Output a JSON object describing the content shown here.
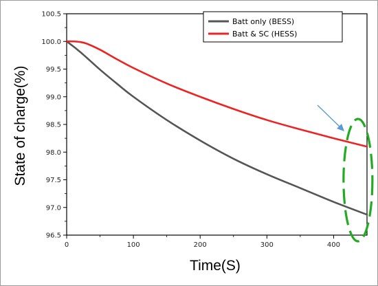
{
  "chart_data": {
    "type": "line",
    "xlabel": "Time(S)",
    "ylabel": "State of charge(%)",
    "xlim": [
      0,
      450
    ],
    "ylim": [
      96.5,
      100.5
    ],
    "x_ticks": [
      "0",
      "100",
      "200",
      "300",
      "400"
    ],
    "y_ticks": [
      "96.5",
      "97.0",
      "97.5",
      "98.0",
      "98.5",
      "99.0",
      "99.5",
      "100.0",
      "100.5"
    ],
    "legend_position": "top-right",
    "grid": false,
    "series": [
      {
        "name": "Batt only (BESS)",
        "color": "#555555",
        "x": [
          0,
          10,
          25,
          50,
          75,
          100,
          150,
          200,
          250,
          300,
          350,
          400,
          450
        ],
        "y": [
          100.0,
          99.91,
          99.76,
          99.49,
          99.24,
          99.0,
          98.58,
          98.21,
          97.88,
          97.6,
          97.35,
          97.1,
          96.87
        ]
      },
      {
        "name": "Batt & SC (HESS)",
        "color": "#ee2222",
        "x": [
          0,
          10,
          20,
          30,
          50,
          75,
          100,
          150,
          200,
          250,
          300,
          350,
          400,
          450
        ],
        "y": [
          100.0,
          100.0,
          99.99,
          99.96,
          99.85,
          99.68,
          99.52,
          99.24,
          99.0,
          98.78,
          98.58,
          98.41,
          98.25,
          98.1
        ]
      }
    ],
    "annotation": {
      "type": "dashed-ellipse-with-arrow",
      "color": "#22aa22",
      "arrow_color": "#5b9bd5",
      "x_range": [
        415,
        460
      ]
    }
  }
}
